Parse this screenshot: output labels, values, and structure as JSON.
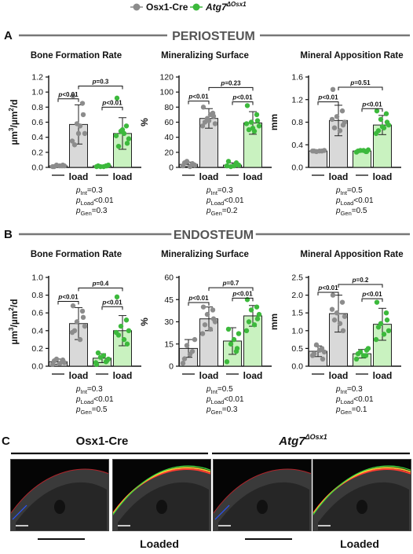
{
  "legend": [
    {
      "label": "Osx1-Cre",
      "base": "Osx1-Cre",
      "sup": "",
      "color": "#8c8c8c"
    },
    {
      "label": "Atg7ΔOsx1",
      "base": "Atg7",
      "sup": "ΔOsx1",
      "color": "#3cb93c"
    }
  ],
  "colors": {
    "ctrl_fill": "#d9d9d9",
    "ctrl_point": "#8c8c8c",
    "ko_fill": "#c9f2c0",
    "ko_point": "#3cb93c",
    "rule": "#777777"
  },
  "panels": [
    {
      "letter": "A",
      "header": "PERIOSTEUM"
    },
    {
      "letter": "B",
      "header": "ENDOSTEUM"
    },
    {
      "letter": "C",
      "header": ""
    }
  ],
  "x_tick_labels": [
    "—",
    "load",
    "—",
    "load"
  ],
  "chart_data": [
    {
      "type": "bar",
      "panel": "A",
      "title": "Bone Formation Rate",
      "ylabel": "µm³/µm²/d",
      "ylim": [
        0,
        1.2
      ],
      "yticks": [
        "0.0",
        "0.2",
        "0.4",
        "0.6",
        "0.8",
        "1.0",
        "1.2"
      ],
      "categories": [
        "Osx1-Cre",
        "Osx1-Cre load",
        "Atg7ΔOsx1",
        "Atg7ΔOsx1 load"
      ],
      "means": [
        0.02,
        0.57,
        0.02,
        0.45
      ],
      "sd": [
        0.01,
        0.26,
        0.01,
        0.21
      ],
      "points": [
        [
          0.01,
          0.02,
          0.03,
          0.02,
          0.01,
          0.02,
          0.03
        ],
        [
          0.95,
          0.85,
          0.58,
          0.45,
          0.3,
          0.55,
          0.7,
          0.35,
          0.45
        ],
        [
          0.01,
          0.02,
          0.01,
          0.03,
          0.02,
          0.01,
          0.02
        ],
        [
          0.92,
          0.55,
          0.48,
          0.38,
          0.28,
          0.45,
          0.32,
          0.42,
          0.5
        ]
      ],
      "brackets": [
        {
          "from": 0,
          "to": 1,
          "label": "p<0.01",
          "y": 0.91
        },
        {
          "from": 2,
          "to": 3,
          "label": "p<0.01",
          "y": 0.8
        },
        {
          "from": 1,
          "to": 3,
          "label": "p=0.3",
          "y": 1.08
        }
      ],
      "stats": [
        {
          "p": "p",
          "sub": "Int",
          "val": "=0.3"
        },
        {
          "p": "p",
          "sub": "Load",
          "val": "<0.01"
        },
        {
          "p": "p",
          "sub": "Gen",
          "val": "=0.3"
        }
      ]
    },
    {
      "type": "bar",
      "panel": "A",
      "title": "Mineralizing Surface",
      "ylabel": "%",
      "ylim": [
        0,
        120
      ],
      "yticks": [
        "0",
        "20",
        "40",
        "60",
        "80",
        "100",
        "120"
      ],
      "categories": [
        "Osx1-Cre",
        "Osx1-Cre load",
        "Atg7ΔOsx1",
        "Atg7ΔOsx1 load"
      ],
      "means": [
        4,
        65,
        3,
        59
      ],
      "sd": [
        3,
        13,
        3,
        15
      ],
      "points": [
        [
          2,
          5,
          8,
          3,
          6,
          1,
          4
        ],
        [
          80,
          72,
          65,
          58,
          60,
          70,
          68,
          55,
          62
        ],
        [
          2,
          6,
          1,
          3,
          8,
          2
        ],
        [
          82,
          70,
          60,
          55,
          50,
          48,
          62,
          58,
          52
        ]
      ],
      "brackets": [
        {
          "from": 0,
          "to": 1,
          "label": "p<0.01",
          "y": 88
        },
        {
          "from": 2,
          "to": 3,
          "label": "p<0.01",
          "y": 87
        },
        {
          "from": 1,
          "to": 3,
          "label": "p=0.23",
          "y": 106
        }
      ],
      "stats": [
        {
          "p": "p",
          "sub": "Int",
          "val": "=0.3"
        },
        {
          "p": "p",
          "sub": "Load",
          "val": "<0.01"
        },
        {
          "p": "p",
          "sub": "Gen",
          "val": "=0.2"
        }
      ]
    },
    {
      "type": "bar",
      "panel": "A",
      "title": "Mineral Apposition Rate",
      "ylabel": "mm",
      "ylim": [
        0,
        1.6
      ],
      "yticks": [
        "0.0",
        "0.4",
        "0.8",
        "1.2",
        "1.6"
      ],
      "categories": [
        "Osx1-Cre",
        "Osx1-Cre load",
        "Atg7ΔOsx1",
        "Atg7ΔOsx1 load"
      ],
      "means": [
        0.29,
        0.83,
        0.29,
        0.75
      ],
      "sd": [
        0.01,
        0.27,
        0.02,
        0.17
      ],
      "points": [
        [
          0.29,
          0.29,
          0.28,
          0.3,
          0.29,
          0.29
        ],
        [
          1.38,
          1.0,
          0.9,
          0.8,
          0.7,
          0.65,
          0.75,
          0.85
        ],
        [
          0.27,
          0.28,
          0.3,
          0.31,
          0.29,
          0.3,
          0.28
        ],
        [
          1.0,
          0.95,
          0.85,
          0.75,
          0.65,
          0.7,
          0.8,
          0.6,
          0.72
        ]
      ],
      "brackets": [
        {
          "from": 0,
          "to": 1,
          "label": "p<0.01",
          "y": 1.16
        },
        {
          "from": 2,
          "to": 3,
          "label": "p<0.01",
          "y": 1.04
        },
        {
          "from": 1,
          "to": 3,
          "label": "p=0.51",
          "y": 1.42
        }
      ],
      "stats": [
        {
          "p": "p",
          "sub": "Int",
          "val": "=0.5"
        },
        {
          "p": "p",
          "sub": "Load",
          "val": "<0.01"
        },
        {
          "p": "p",
          "sub": "Gen",
          "val": "=0.5"
        }
      ]
    },
    {
      "type": "bar",
      "panel": "B",
      "title": "Bone Formation Rate",
      "ylabel": "µm³/µm²/d",
      "ylim": [
        0,
        1.0
      ],
      "yticks": [
        "0.0",
        "0.2",
        "0.4",
        "0.6",
        "0.8",
        "1.0"
      ],
      "categories": [
        "Osx1-Cre",
        "Osx1-Cre load",
        "Atg7ΔOsx1",
        "Atg7ΔOsx1 load"
      ],
      "means": [
        0.05,
        0.48,
        0.09,
        0.4
      ],
      "sd": [
        0.03,
        0.18,
        0.05,
        0.17
      ],
      "points": [
        [
          0.02,
          0.05,
          0.08,
          0.04,
          0.06,
          0.03,
          0.07
        ],
        [
          0.68,
          0.62,
          0.5,
          0.45,
          0.4,
          0.3,
          0.55,
          0.38
        ],
        [
          0.02,
          0.05,
          0.1,
          0.08,
          0.15,
          0.12,
          0.06,
          0.04
        ],
        [
          0.78,
          0.52,
          0.45,
          0.4,
          0.35,
          0.3,
          0.25,
          0.38
        ]
      ],
      "brackets": [
        {
          "from": 0,
          "to": 1,
          "label": "p<0.01",
          "y": 0.73
        },
        {
          "from": 2,
          "to": 3,
          "label": "p<0.01",
          "y": 0.67
        },
        {
          "from": 1,
          "to": 3,
          "label": "p=0.4",
          "y": 0.88
        }
      ],
      "stats": [
        {
          "p": "p",
          "sub": "Int",
          "val": "=0.3"
        },
        {
          "p": "p",
          "sub": "Load",
          "val": "<0.01"
        },
        {
          "p": "p",
          "sub": "Gen",
          "val": "=0.5"
        }
      ]
    },
    {
      "type": "bar",
      "panel": "B",
      "title": "Mineralizing Surface",
      "ylabel": "%",
      "ylim": [
        0,
        60
      ],
      "yticks": [
        "0",
        "15",
        "30",
        "45",
        "60"
      ],
      "categories": [
        "Osx1-Cre",
        "Osx1-Cre load",
        "Atg7ΔOsx1",
        "Atg7ΔOsx1 load"
      ],
      "means": [
        12,
        32,
        17,
        34
      ],
      "sd": [
        6,
        8,
        9,
        7
      ],
      "points": [
        [
          2,
          10,
          14,
          18,
          5,
          8
        ],
        [
          40,
          38,
          35,
          30,
          28,
          25,
          32,
          22
        ],
        [
          3,
          10,
          15,
          22,
          25,
          18,
          12
        ],
        [
          45,
          40,
          38,
          35,
          30,
          28,
          32,
          24
        ]
      ],
      "brackets": [
        {
          "from": 0,
          "to": 1,
          "label": "p<0.01",
          "y": 43
        },
        {
          "from": 2,
          "to": 3,
          "label": "p<0.01",
          "y": 46
        },
        {
          "from": 1,
          "to": 3,
          "label": "p=0.7",
          "y": 53
        }
      ],
      "stats": [
        {
          "p": "p",
          "sub": "Int",
          "val": "=0.5"
        },
        {
          "p": "p",
          "sub": "Load",
          "val": "<0.01"
        },
        {
          "p": "p",
          "sub": "Gen",
          "val": "=0.3"
        }
      ]
    },
    {
      "type": "bar",
      "panel": "B",
      "title": "Mineral Apposition Rate",
      "ylabel": "mm",
      "ylim": [
        0,
        2.5
      ],
      "yticks": [
        "0.0",
        "0.5",
        "1.0",
        "1.5",
        "2.0",
        "2.5"
      ],
      "categories": [
        "Osx1-Cre",
        "Osx1-Cre load",
        "Atg7ΔOsx1",
        "Atg7ΔOsx1 load"
      ],
      "means": [
        0.42,
        1.48,
        0.35,
        1.18
      ],
      "sd": [
        0.15,
        0.52,
        0.12,
        0.45
      ],
      "points": [
        [
          0.3,
          0.5,
          0.6,
          0.4,
          0.35,
          0.45,
          0.2
        ],
        [
          2.0,
          1.8,
          1.5,
          1.4,
          1.3,
          1.2,
          1.0,
          1.6
        ],
        [
          0.2,
          0.3,
          0.4,
          0.5,
          0.35,
          0.3,
          0.45
        ],
        [
          1.8,
          1.5,
          1.2,
          1.0,
          1.1,
          0.9,
          1.3,
          0.75
        ]
      ],
      "brackets": [
        {
          "from": 0,
          "to": 1,
          "label": "p<0.01",
          "y": 2.08
        },
        {
          "from": 2,
          "to": 3,
          "label": "p<0.01",
          "y": 1.9
        },
        {
          "from": 1,
          "to": 3,
          "label": "p=0.2",
          "y": 2.3
        }
      ],
      "stats": [
        {
          "p": "p",
          "sub": "Int",
          "val": "=0.3"
        },
        {
          "p": "p",
          "sub": "Load",
          "val": "<0.01"
        },
        {
          "p": "p",
          "sub": "Gen",
          "val": "=0.1"
        }
      ]
    }
  ],
  "micrographs": {
    "groups": [
      {
        "title": "Osx1-Cre",
        "base": "Osx1-Cre",
        "sup": ""
      },
      {
        "title": "Atg7ΔOsx1",
        "base": "Atg7",
        "sup": "ΔOsx1"
      }
    ],
    "loaded_label": "Loaded"
  }
}
